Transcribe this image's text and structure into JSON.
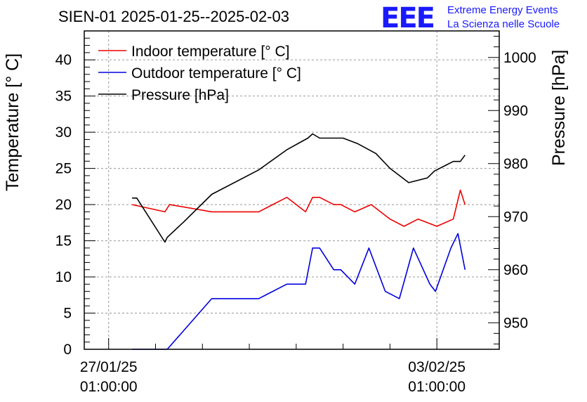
{
  "header": {
    "title": "SIEN-01 2025-01-25--2025-02-03",
    "logo_text": "EEE",
    "subtitle_line1": "Extreme Energy Events",
    "subtitle_line2": "La Scienza nelle Scuole"
  },
  "colors": {
    "indoor": "#ee0000",
    "outdoor": "#0000dd",
    "pressure": "#000000",
    "logo": "#1a1aff",
    "grid": "#999999"
  },
  "chart_data": {
    "type": "line",
    "title": "SIEN-01 2025-01-25--2025-02-03",
    "ylabel_left": "Temperature [° C]",
    "ylabel_right": "Pressure [hPa]",
    "x_tick_labels": [
      {
        "date": "27/01/25",
        "time": "01:00:00",
        "day": 0
      },
      {
        "date": "03/02/25",
        "time": "01:00:00",
        "day": 7
      }
    ],
    "x_unit": "days since 27/01/25 01:00:00",
    "xlim": [
      -0.52,
      8.33
    ],
    "ylim_left": [
      0,
      44
    ],
    "ylim_right": [
      945,
      1005
    ],
    "y_ticks_left": [
      0,
      5,
      10,
      15,
      20,
      25,
      30,
      35,
      40
    ],
    "y_ticks_right": [
      950,
      960,
      970,
      980,
      990,
      1000
    ],
    "grid": true,
    "legend_position": "top-left",
    "series": [
      {
        "name": "Indoor temperature [° C]",
        "axis": "left",
        "color": "#ee0000",
        "x": [
          0.5,
          1.2,
          1.3,
          2.2,
          3.2,
          3.8,
          4.2,
          4.35,
          4.5,
          4.8,
          4.95,
          5.25,
          5.6,
          6.0,
          6.3,
          6.6,
          7.0,
          7.35,
          7.5,
          7.6
        ],
        "y": [
          20,
          19,
          20,
          19,
          19,
          21,
          19,
          21,
          21,
          20,
          20,
          19,
          20,
          18,
          17,
          18,
          17,
          18,
          22,
          20
        ]
      },
      {
        "name": "Outdoor temperature [° C]",
        "axis": "left",
        "color": "#0000dd",
        "x": [
          0.5,
          1.25,
          2.2,
          3.2,
          3.8,
          4.2,
          4.35,
          4.5,
          4.8,
          4.95,
          5.25,
          5.55,
          5.9,
          6.2,
          6.5,
          6.85,
          6.97,
          7.3,
          7.45,
          7.6
        ],
        "y": [
          0,
          0,
          7,
          7,
          9,
          9,
          14,
          14,
          11,
          11,
          9,
          14,
          8,
          7,
          14,
          9,
          8,
          14,
          16,
          11
        ]
      },
      {
        "name": "Pressure [hPa]",
        "axis": "right",
        "color": "#000000",
        "x": [
          0.5,
          0.6,
          1.2,
          1.25,
          1.6,
          2.2,
          3.2,
          3.8,
          4.25,
          4.35,
          4.5,
          5.0,
          5.3,
          5.7,
          6.0,
          6.4,
          6.8,
          6.95,
          7.35,
          7.5,
          7.6
        ],
        "y": [
          973.5,
          973.5,
          965.2,
          966.1,
          969.0,
          974.2,
          978.8,
          982.6,
          984.8,
          985.6,
          984.8,
          984.8,
          983.8,
          981.9,
          979.1,
          976.4,
          977.3,
          978.6,
          980.4,
          980.4,
          981.6
        ]
      }
    ]
  }
}
